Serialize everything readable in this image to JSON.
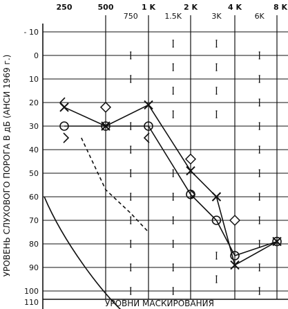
{
  "chart_data": {
    "type": "line",
    "title": "",
    "xlabel": "УРОВНИ МАСКИРОВАНИЯ",
    "ylabel": "УРОВЕНЬ СЛУХОВОГО ПОРОГА В дБ (АНСИ 1969 г.)",
    "x_ticks_octave": [
      "250",
      "500",
      "1 K",
      "2 K",
      "4 K",
      "8 K"
    ],
    "x_ticks_interoctave": [
      "750",
      "1.5K",
      "3K",
      "6K"
    ],
    "y_ticks": [
      "- 10",
      "0",
      "10",
      "20",
      "30",
      "40",
      "50",
      "60",
      "70",
      "80",
      "90",
      "100",
      "110"
    ],
    "ylim": [
      -10,
      110
    ],
    "y_inverted": true,
    "grid": "vertical-and-horizontal",
    "series": [
      {
        "marker": "x",
        "style": "solid",
        "points": [
          [
            250,
            22
          ],
          [
            500,
            30
          ],
          [
            1000,
            21
          ],
          [
            2000,
            49
          ],
          [
            3000,
            60
          ],
          [
            4000,
            89
          ],
          [
            8000,
            79
          ]
        ]
      },
      {
        "marker": "o",
        "style": "solid",
        "points": [
          [
            250,
            30
          ],
          [
            500,
            30
          ],
          [
            1000,
            30
          ],
          [
            2000,
            59
          ],
          [
            3000,
            70
          ],
          [
            4000,
            85
          ],
          [
            8000,
            79
          ]
        ]
      },
      {
        "marker": "diamond",
        "style": "none",
        "points": [
          [
            500,
            22
          ],
          [
            2000,
            44
          ],
          [
            4000,
            70
          ]
        ]
      },
      {
        "marker": "<",
        "style": "none",
        "points": [
          [
            250,
            20
          ],
          [
            1000,
            35
          ]
        ]
      },
      {
        "marker": ">",
        "style": "none",
        "points": [
          [
            250,
            35
          ],
          [
            2000,
            59
          ]
        ]
      },
      {
        "marker": "none",
        "style": "dashed",
        "points": [
          [
            333,
            35
          ],
          [
            500,
            57
          ],
          [
            750,
            67
          ],
          [
            1000,
            75
          ]
        ]
      },
      {
        "marker": "none",
        "style": "solid-curve",
        "points": [
          [
            180,
            60
          ],
          [
            250,
            80
          ],
          [
            500,
            103
          ],
          [
            700,
            110
          ]
        ]
      },
      {
        "marker": "bracket",
        "style": "none",
        "points": [
          [
            750,
            0
          ],
          [
            750,
            10
          ],
          [
            750,
            30
          ],
          [
            750,
            40
          ],
          [
            750,
            50
          ],
          [
            750,
            60
          ],
          [
            750,
            70
          ],
          [
            750,
            80
          ],
          [
            750,
            90
          ],
          [
            750,
            100
          ],
          [
            750,
            110
          ],
          [
            1500,
            -5
          ],
          [
            1500,
            5
          ],
          [
            1500,
            15
          ],
          [
            1500,
            25
          ],
          [
            1500,
            50
          ],
          [
            1500,
            60
          ],
          [
            1500,
            70
          ],
          [
            1500,
            80
          ],
          [
            1500,
            90
          ],
          [
            1500,
            100
          ],
          [
            1500,
            110
          ],
          [
            3000,
            -5
          ],
          [
            3000,
            5
          ],
          [
            3000,
            15
          ],
          [
            3000,
            25
          ],
          [
            3000,
            85
          ],
          [
            3000,
            95
          ],
          [
            3000,
            110
          ],
          [
            6000,
            0
          ],
          [
            6000,
            10
          ],
          [
            6000,
            20
          ],
          [
            6000,
            30
          ],
          [
            6000,
            40
          ],
          [
            6000,
            50
          ],
          [
            6000,
            60
          ],
          [
            6000,
            70
          ],
          [
            6000,
            80
          ],
          [
            6000,
            90
          ],
          [
            6000,
            100
          ],
          [
            6000,
            110
          ]
        ]
      }
    ]
  }
}
